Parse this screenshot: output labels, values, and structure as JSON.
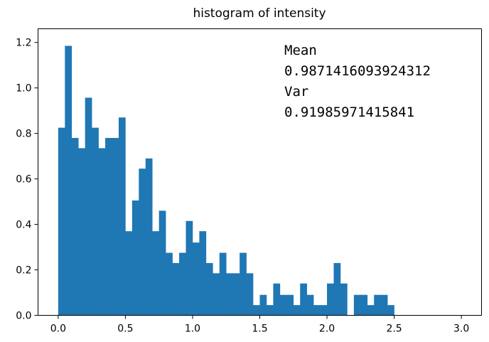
{
  "chart_data": {
    "type": "bar",
    "title": "histogram of intensity",
    "xlabel": "",
    "ylabel": "",
    "xlim": [
      -0.15,
      3.15
    ],
    "ylim": [
      0,
      1.26
    ],
    "grid": false,
    "bar_color": "#1f77b4",
    "bin_start": 0.0,
    "bin_width": 0.05,
    "values": [
      0.825,
      1.185,
      0.78,
      0.735,
      0.957,
      0.825,
      0.735,
      0.78,
      0.78,
      0.87,
      0.37,
      0.505,
      0.645,
      0.69,
      0.37,
      0.46,
      0.275,
      0.23,
      0.275,
      0.415,
      0.32,
      0.37,
      0.23,
      0.185,
      0.275,
      0.185,
      0.185,
      0.275,
      0.185,
      0.045,
      0.09,
      0.045,
      0.14,
      0.09,
      0.09,
      0.045,
      0.14,
      0.09,
      0.045,
      0.045,
      0.14,
      0.23,
      0.14,
      0.0,
      0.09,
      0.09,
      0.045,
      0.09,
      0.09,
      0.045
    ],
    "xticks": [
      {
        "value": 0.0,
        "label": "0.0"
      },
      {
        "value": 0.5,
        "label": "0.5"
      },
      {
        "value": 1.0,
        "label": "1.0"
      },
      {
        "value": 1.5,
        "label": "1.5"
      },
      {
        "value": 2.0,
        "label": "2.0"
      },
      {
        "value": 2.5,
        "label": "2.5"
      },
      {
        "value": 3.0,
        "label": "3.0"
      }
    ],
    "yticks": [
      {
        "value": 0.0,
        "label": "0.0"
      },
      {
        "value": 0.2,
        "label": "0.2"
      },
      {
        "value": 0.4,
        "label": "0.4"
      },
      {
        "value": 0.6,
        "label": "0.6"
      },
      {
        "value": 0.8,
        "label": "0.8"
      },
      {
        "value": 1.0,
        "label": "1.0"
      },
      {
        "value": 1.2,
        "label": "1.2"
      }
    ],
    "annotation": [
      "Mean",
      "0.9871416093924312",
      "Var",
      "0.91985971415841"
    ]
  }
}
